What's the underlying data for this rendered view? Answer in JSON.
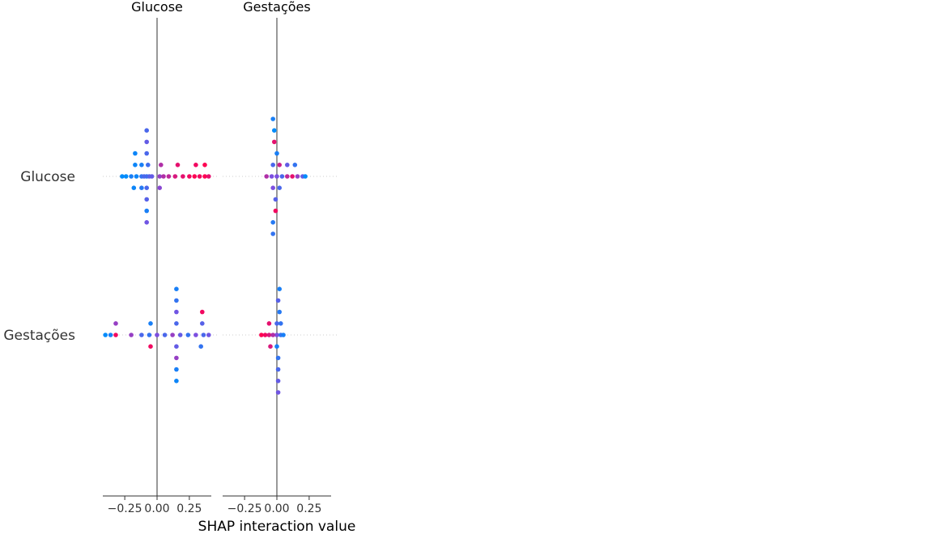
{
  "chart_data": {
    "type": "scatter",
    "subtype": "shap-interaction-beeswarm-matrix",
    "features": [
      "Glucose",
      "Gestações"
    ],
    "xlabel": "SHAP interaction value",
    "xlim": [
      -0.42,
      0.42
    ],
    "xticks": [
      -0.25,
      0.0,
      0.25
    ],
    "xtick_labels": [
      "−0.25",
      "0.00",
      "0.25"
    ],
    "grid": false,
    "colormap": [
      "#008bfb",
      "#7c4fe0",
      "#ff0052"
    ],
    "panels": [
      {
        "column": "Glucose",
        "rows": [
          {
            "row": "Glucose",
            "points": [
              {
                "x": -0.08,
                "lane": 0,
                "c": 0.2
              },
              {
                "x": -0.27,
                "lane": 0,
                "c": 0.0
              },
              {
                "x": -0.24,
                "lane": 0,
                "c": 0.0
              },
              {
                "x": -0.2,
                "lane": 0,
                "c": 0.1
              },
              {
                "x": -0.16,
                "lane": 0,
                "c": 0.05
              },
              {
                "x": -0.12,
                "lane": 0,
                "c": 0.2
              },
              {
                "x": -0.1,
                "lane": 0,
                "c": 0.3
              },
              {
                "x": -0.06,
                "lane": 0,
                "c": 0.35
              },
              {
                "x": -0.04,
                "lane": 0,
                "c": 0.4
              },
              {
                "x": 0.02,
                "lane": 0,
                "c": 0.6
              },
              {
                "x": 0.05,
                "lane": 0,
                "c": 0.7
              },
              {
                "x": 0.09,
                "lane": 0,
                "c": 0.75
              },
              {
                "x": 0.14,
                "lane": 0,
                "c": 0.85
              },
              {
                "x": 0.2,
                "lane": 0,
                "c": 0.9
              },
              {
                "x": 0.25,
                "lane": 0,
                "c": 0.95
              },
              {
                "x": 0.29,
                "lane": 0,
                "c": 1.0
              },
              {
                "x": 0.33,
                "lane": 0,
                "c": 0.95
              },
              {
                "x": 0.37,
                "lane": 0,
                "c": 1.0
              },
              {
                "x": 0.4,
                "lane": 0,
                "c": 0.9
              },
              {
                "x": -0.07,
                "lane": 1,
                "c": 0.25
              },
              {
                "x": -0.17,
                "lane": 1,
                "c": 0.05
              },
              {
                "x": -0.12,
                "lane": 1,
                "c": 0.1
              },
              {
                "x": 0.03,
                "lane": 1,
                "c": 0.7
              },
              {
                "x": 0.16,
                "lane": 1,
                "c": 0.9
              },
              {
                "x": 0.3,
                "lane": 1,
                "c": 0.95
              },
              {
                "x": 0.37,
                "lane": 1,
                "c": 1.0
              },
              {
                "x": -0.08,
                "lane": -1,
                "c": 0.3
              },
              {
                "x": -0.18,
                "lane": -1,
                "c": 0.05
              },
              {
                "x": -0.12,
                "lane": -1,
                "c": 0.15
              },
              {
                "x": 0.02,
                "lane": -1,
                "c": 0.55
              },
              {
                "x": -0.08,
                "lane": 2,
                "c": 0.3
              },
              {
                "x": -0.17,
                "lane": 2,
                "c": 0.05
              },
              {
                "x": -0.08,
                "lane": -2,
                "c": 0.35
              },
              {
                "x": -0.08,
                "lane": 3,
                "c": 0.4
              },
              {
                "x": -0.08,
                "lane": -3,
                "c": 0.1
              },
              {
                "x": -0.08,
                "lane": 4,
                "c": 0.3
              },
              {
                "x": -0.08,
                "lane": -4,
                "c": 0.45
              }
            ]
          },
          {
            "row": "Gestações",
            "points": [
              {
                "x": 0.0,
                "lane": 0,
                "c": 0.5
              },
              {
                "x": -0.4,
                "lane": 0,
                "c": 0.0
              },
              {
                "x": -0.36,
                "lane": 0,
                "c": 0.1
              },
              {
                "x": -0.32,
                "lane": 0,
                "c": 0.95
              },
              {
                "x": -0.2,
                "lane": 0,
                "c": 0.6
              },
              {
                "x": -0.12,
                "lane": 0,
                "c": 0.3
              },
              {
                "x": -0.06,
                "lane": 0,
                "c": 0.2
              },
              {
                "x": 0.06,
                "lane": 0,
                "c": 0.3
              },
              {
                "x": 0.12,
                "lane": 0,
                "c": 0.6
              },
              {
                "x": 0.18,
                "lane": 0,
                "c": 0.4
              },
              {
                "x": 0.24,
                "lane": 0,
                "c": 0.2
              },
              {
                "x": 0.3,
                "lane": 0,
                "c": 0.5
              },
              {
                "x": 0.36,
                "lane": 0,
                "c": 0.3
              },
              {
                "x": 0.4,
                "lane": 0,
                "c": 0.45
              },
              {
                "x": -0.32,
                "lane": 1,
                "c": 0.6
              },
              {
                "x": -0.05,
                "lane": 1,
                "c": 0.1
              },
              {
                "x": 0.15,
                "lane": 1,
                "c": 0.3
              },
              {
                "x": 0.35,
                "lane": 1,
                "c": 0.35
              },
              {
                "x": -0.05,
                "lane": -1,
                "c": 0.95
              },
              {
                "x": 0.15,
                "lane": -1,
                "c": 0.4
              },
              {
                "x": 0.34,
                "lane": -1,
                "c": 0.2
              },
              {
                "x": 0.15,
                "lane": 2,
                "c": 0.45
              },
              {
                "x": 0.35,
                "lane": 2,
                "c": 0.95
              },
              {
                "x": 0.15,
                "lane": -2,
                "c": 0.6
              },
              {
                "x": 0.15,
                "lane": 3,
                "c": 0.2
              },
              {
                "x": 0.15,
                "lane": -3,
                "c": 0.1
              },
              {
                "x": 0.15,
                "lane": 4,
                "c": 0.1
              },
              {
                "x": 0.15,
                "lane": -4,
                "c": 0.05
              }
            ]
          }
        ]
      },
      {
        "column": "Gestações",
        "rows": [
          {
            "row": "Glucose",
            "points": [
              {
                "x": 0.0,
                "lane": 0,
                "c": 0.5
              },
              {
                "x": -0.08,
                "lane": 0,
                "c": 0.7
              },
              {
                "x": -0.04,
                "lane": 0,
                "c": 0.5
              },
              {
                "x": 0.04,
                "lane": 0,
                "c": 0.3
              },
              {
                "x": 0.08,
                "lane": 0,
                "c": 0.75
              },
              {
                "x": 0.12,
                "lane": 0,
                "c": 0.9
              },
              {
                "x": 0.16,
                "lane": 0,
                "c": 0.6
              },
              {
                "x": 0.2,
                "lane": 0,
                "c": 0.4
              },
              {
                "x": 0.22,
                "lane": 0,
                "c": 0.0
              },
              {
                "x": -0.03,
                "lane": 1,
                "c": 0.3
              },
              {
                "x": 0.02,
                "lane": 1,
                "c": 0.8
              },
              {
                "x": 0.08,
                "lane": 1,
                "c": 0.4
              },
              {
                "x": 0.14,
                "lane": 1,
                "c": 0.2
              },
              {
                "x": -0.03,
                "lane": -1,
                "c": 0.5
              },
              {
                "x": 0.02,
                "lane": -1,
                "c": 0.3
              },
              {
                "x": 0.0,
                "lane": 2,
                "c": 0.1
              },
              {
                "x": -0.02,
                "lane": 3,
                "c": 0.9
              },
              {
                "x": -0.01,
                "lane": -2,
                "c": 0.35
              },
              {
                "x": -0.01,
                "lane": -3,
                "c": 0.95
              },
              {
                "x": -0.02,
                "lane": 4,
                "c": 0.0
              },
              {
                "x": -0.03,
                "lane": -4,
                "c": 0.15
              },
              {
                "x": -0.03,
                "lane": -5,
                "c": 0.2
              },
              {
                "x": -0.03,
                "lane": 5,
                "c": 0.1
              }
            ]
          },
          {
            "row": "Gestações",
            "points": [
              {
                "x": 0.0,
                "lane": 0,
                "c": 0.5
              },
              {
                "x": -0.12,
                "lane": 0,
                "c": 1.0
              },
              {
                "x": -0.09,
                "lane": 0,
                "c": 0.95
              },
              {
                "x": -0.06,
                "lane": 0,
                "c": 0.85
              },
              {
                "x": -0.03,
                "lane": 0,
                "c": 0.7
              },
              {
                "x": 0.03,
                "lane": 0,
                "c": 0.2
              },
              {
                "x": 0.05,
                "lane": 0,
                "c": 0.1
              },
              {
                "x": -0.06,
                "lane": 1,
                "c": 0.9
              },
              {
                "x": 0.0,
                "lane": 1,
                "c": 0.3
              },
              {
                "x": 0.03,
                "lane": 1,
                "c": 0.2
              },
              {
                "x": -0.05,
                "lane": -1,
                "c": 0.85
              },
              {
                "x": 0.0,
                "lane": -1,
                "c": 0.1
              },
              {
                "x": 0.02,
                "lane": 2,
                "c": 0.15
              },
              {
                "x": 0.01,
                "lane": -2,
                "c": 0.2
              },
              {
                "x": 0.01,
                "lane": 3,
                "c": 0.35
              },
              {
                "x": 0.01,
                "lane": -3,
                "c": 0.3
              },
              {
                "x": 0.02,
                "lane": 4,
                "c": 0.1
              },
              {
                "x": 0.01,
                "lane": -4,
                "c": 0.4
              },
              {
                "x": 0.01,
                "lane": -5,
                "c": 0.45
              }
            ]
          }
        ]
      }
    ]
  }
}
